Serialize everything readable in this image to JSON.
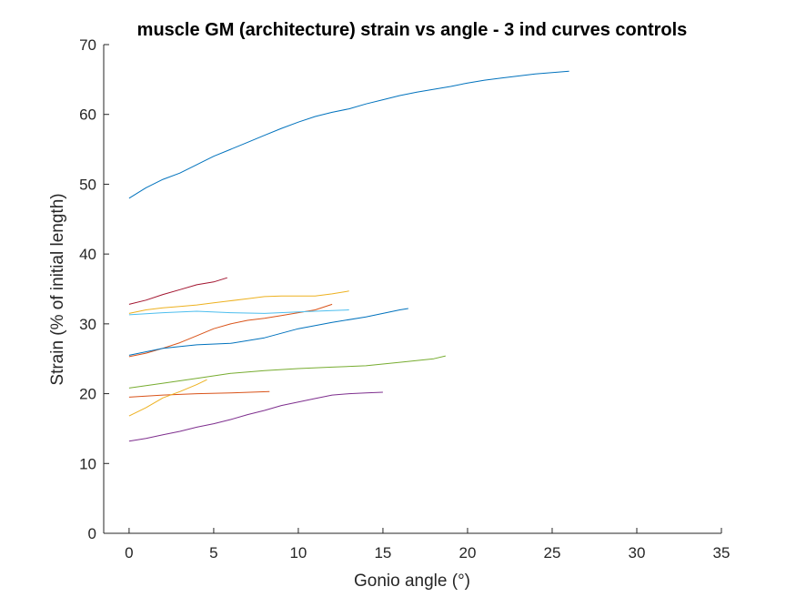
{
  "chart_data": {
    "type": "line",
    "title": "muscle GM (architecture) strain vs angle - 3 ind curves controls",
    "xlabel": "Gonio angle (°)",
    "ylabel": "Strain (% of initial length)",
    "xlim": [
      -1.5,
      35
    ],
    "ylim": [
      0,
      70
    ],
    "xticks": [
      0,
      5,
      10,
      15,
      20,
      25,
      30,
      35
    ],
    "yticks": [
      0,
      10,
      20,
      30,
      40,
      50,
      60,
      70
    ],
    "grid": false,
    "legend": "none",
    "series": [
      {
        "color": "#0072BD",
        "x": [
          0,
          1,
          2,
          3,
          4,
          5,
          6,
          7,
          8,
          9,
          10,
          11,
          12,
          13,
          14,
          15,
          16,
          17,
          18,
          19,
          20,
          21,
          22,
          23,
          24,
          25,
          26
        ],
        "y": [
          48,
          49.5,
          50.7,
          51.6,
          52.8,
          54,
          55,
          56,
          57,
          58,
          58.9,
          59.7,
          60.3,
          60.8,
          61.5,
          62.1,
          62.7,
          63.2,
          63.6,
          64,
          64.5,
          64.9,
          65.2,
          65.5,
          65.8,
          66,
          66.2
        ]
      },
      {
        "color": "#D95319",
        "x": [
          0,
          1,
          2,
          3,
          4,
          5,
          6,
          7,
          8,
          9,
          10,
          11,
          12
        ],
        "y": [
          25.3,
          25.8,
          26.5,
          27.3,
          28.3,
          29.3,
          30,
          30.5,
          30.8,
          31.2,
          31.6,
          32,
          32.8
        ]
      },
      {
        "color": "#EDB120",
        "x": [
          0,
          1,
          2,
          3,
          4,
          5,
          6,
          7,
          8,
          9,
          10,
          11,
          12,
          13
        ],
        "y": [
          31.5,
          32,
          32.3,
          32.5,
          32.7,
          33,
          33.3,
          33.6,
          33.9,
          34,
          34,
          34,
          34.3,
          34.7
        ]
      },
      {
        "color": "#7E2F8E",
        "x": [
          0,
          1,
          2,
          3,
          4,
          5,
          6,
          7,
          8,
          9,
          10,
          11,
          12,
          13,
          14,
          15
        ],
        "y": [
          13.2,
          13.6,
          14.1,
          14.6,
          15.2,
          15.7,
          16.3,
          17,
          17.6,
          18.3,
          18.8,
          19.3,
          19.8,
          20,
          20.1,
          20.2
        ]
      },
      {
        "color": "#77AC30",
        "x": [
          0,
          2,
          4,
          6,
          8,
          10,
          12,
          14,
          16,
          18,
          18.7
        ],
        "y": [
          20.8,
          21.5,
          22.2,
          22.9,
          23.3,
          23.6,
          23.8,
          24,
          24.5,
          25,
          25.4
        ]
      },
      {
        "color": "#4DBEEE",
        "x": [
          0,
          2,
          4,
          6,
          8,
          10,
          12,
          13
        ],
        "y": [
          31.3,
          31.6,
          31.8,
          31.6,
          31.5,
          31.7,
          31.9,
          32
        ]
      },
      {
        "color": "#A2142F",
        "x": [
          0,
          1,
          2,
          3,
          4,
          5,
          5.8
        ],
        "y": [
          32.8,
          33.4,
          34.2,
          34.9,
          35.6,
          36,
          36.6
        ]
      },
      {
        "color": "#0072BD",
        "x": [
          0,
          2,
          4,
          6,
          8,
          10,
          12,
          14,
          16,
          16.5
        ],
        "y": [
          25.5,
          26.5,
          27,
          27.2,
          28,
          29.3,
          30.2,
          31,
          32,
          32.2
        ]
      },
      {
        "color": "#D95319",
        "x": [
          0,
          2,
          4,
          6,
          8.3
        ],
        "y": [
          19.5,
          19.8,
          20,
          20.1,
          20.3
        ]
      },
      {
        "color": "#EDB120",
        "x": [
          0,
          1,
          2,
          3,
          4,
          4.6
        ],
        "y": [
          16.8,
          18,
          19.4,
          20.3,
          21.3,
          22
        ]
      }
    ]
  }
}
